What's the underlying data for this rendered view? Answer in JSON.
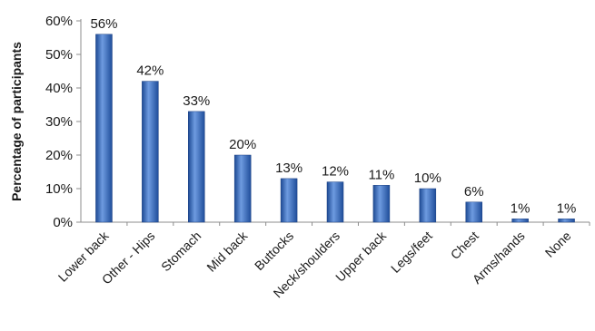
{
  "chart_data": {
    "type": "bar",
    "title": "",
    "xlabel": "",
    "ylabel": "Percentage of participants",
    "categories": [
      "Lower back",
      "Other - Hips",
      "Stomach",
      "Mid back",
      "Buttocks",
      "Neck/shoulders",
      "Upper back",
      "Legs/feet",
      "Chest",
      "Arms/hands",
      "None"
    ],
    "values": [
      56,
      42,
      33,
      20,
      13,
      12,
      11,
      10,
      6,
      1,
      1
    ],
    "data_labels": [
      "56%",
      "42%",
      "33%",
      "20%",
      "13%",
      "12%",
      "11%",
      "10%",
      "6%",
      "1%",
      "1%"
    ],
    "ylim": [
      0,
      60
    ],
    "yticks": [
      0,
      10,
      20,
      30,
      40,
      50,
      60
    ],
    "ytick_labels": [
      "0%",
      "10%",
      "20%",
      "30%",
      "40%",
      "50%",
      "60%"
    ],
    "grid": false,
    "legend": "none",
    "bar_color": "#2f63b4"
  }
}
